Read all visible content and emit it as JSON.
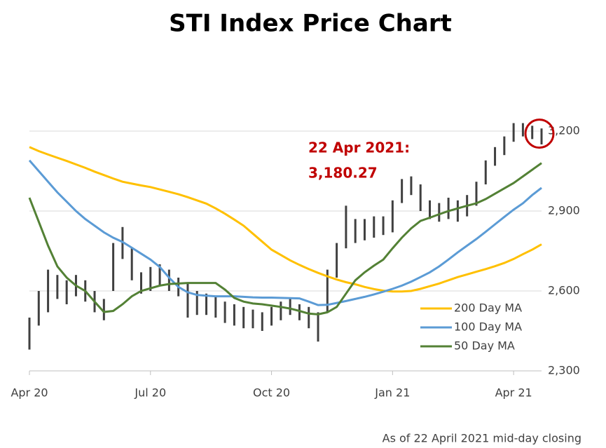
{
  "chart_data": {
    "type": "ohlc",
    "title": "STI Index Price Chart",
    "annotation": [
      "22 Apr 2021:",
      "3,180.27"
    ],
    "footnote": "As of 22 April 2021 mid-day closing",
    "categories": [
      "Apr 20",
      null,
      null,
      null,
      null,
      null,
      null,
      null,
      null,
      null,
      null,
      null,
      null,
      "Jul 20",
      null,
      null,
      null,
      null,
      null,
      null,
      null,
      null,
      null,
      null,
      null,
      null,
      "Oct 20",
      null,
      null,
      null,
      null,
      null,
      null,
      null,
      null,
      null,
      null,
      null,
      null,
      "Jan 21",
      null,
      null,
      null,
      null,
      null,
      null,
      null,
      null,
      null,
      null,
      null,
      null,
      "Apr 21",
      null,
      null,
      null
    ],
    "price": {
      "color": "#404040",
      "low": [
        2380,
        2470,
        2520,
        2570,
        2550,
        2580,
        2560,
        2520,
        2490,
        2600,
        2720,
        2640,
        2590,
        2600,
        2620,
        2600,
        2580,
        2500,
        2510,
        2510,
        2500,
        2480,
        2470,
        2460,
        2460,
        2450,
        2470,
        2490,
        2510,
        2490,
        2460,
        2410,
        2520,
        2650,
        2760,
        2780,
        2790,
        2800,
        2810,
        2820,
        2930,
        2960,
        2900,
        2870,
        2860,
        2870,
        2860,
        2880,
        2920,
        3000,
        3070,
        3110,
        3160,
        3180,
        3170,
        3150
      ],
      "high": [
        2500,
        2600,
        2680,
        2660,
        2640,
        2660,
        2640,
        2600,
        2570,
        2780,
        2840,
        2760,
        2670,
        2690,
        2700,
        2680,
        2650,
        2630,
        2600,
        2590,
        2580,
        2560,
        2550,
        2540,
        2530,
        2520,
        2540,
        2560,
        2570,
        2550,
        2540,
        2520,
        2680,
        2780,
        2920,
        2870,
        2870,
        2880,
        2880,
        2940,
        3020,
        3030,
        3000,
        2940,
        2930,
        2950,
        2940,
        2960,
        3010,
        3090,
        3140,
        3180,
        3230,
        3230,
        3220,
        3210
      ]
    },
    "series": [
      {
        "name": "200 Day MA",
        "color": "#ffc000",
        "values": [
          3140,
          3125,
          3112,
          3100,
          3088,
          3075,
          3062,
          3048,
          3035,
          3022,
          3010,
          3003,
          2996,
          2990,
          2981,
          2972,
          2963,
          2952,
          2940,
          2928,
          2910,
          2890,
          2868,
          2845,
          2815,
          2785,
          2755,
          2735,
          2715,
          2698,
          2682,
          2668,
          2655,
          2643,
          2633,
          2625,
          2615,
          2607,
          2601,
          2598,
          2598,
          2600,
          2608,
          2618,
          2628,
          2640,
          2652,
          2662,
          2672,
          2682,
          2693,
          2705,
          2720,
          2738,
          2755,
          2775
        ]
      },
      {
        "name": "100 Day MA",
        "color": "#5b9bd5",
        "values": [
          3090,
          3050,
          3010,
          2970,
          2935,
          2900,
          2870,
          2845,
          2820,
          2800,
          2784,
          2762,
          2740,
          2718,
          2690,
          2650,
          2615,
          2595,
          2585,
          2582,
          2580,
          2580,
          2580,
          2578,
          2576,
          2575,
          2575,
          2574,
          2573,
          2572,
          2560,
          2547,
          2548,
          2555,
          2562,
          2570,
          2578,
          2587,
          2597,
          2608,
          2620,
          2635,
          2652,
          2670,
          2692,
          2718,
          2745,
          2770,
          2795,
          2822,
          2850,
          2878,
          2905,
          2929,
          2960,
          2987
        ]
      },
      {
        "name": "50 Day MA",
        "color": "#538135",
        "values": [
          2950,
          2860,
          2770,
          2692,
          2650,
          2620,
          2600,
          2560,
          2521,
          2525,
          2550,
          2580,
          2600,
          2610,
          2620,
          2626,
          2628,
          2630,
          2630,
          2630,
          2630,
          2605,
          2574,
          2560,
          2553,
          2550,
          2545,
          2540,
          2534,
          2525,
          2515,
          2512,
          2520,
          2540,
          2590,
          2640,
          2670,
          2695,
          2718,
          2760,
          2800,
          2835,
          2863,
          2875,
          2888,
          2900,
          2910,
          2920,
          2929,
          2945,
          2965,
          2985,
          3005,
          3030,
          3055,
          3080
        ]
      }
    ],
    "ylim": [
      2300,
      3300
    ],
    "yticks": [
      {
        "value": 2300,
        "label": "2,300"
      },
      {
        "value": 2600,
        "label": "2,600"
      },
      {
        "value": 2900,
        "label": "2,900"
      },
      {
        "value": 3200,
        "label": "3,200"
      }
    ],
    "grid": true,
    "legend": "lower right",
    "circle_color": "#c00000"
  }
}
